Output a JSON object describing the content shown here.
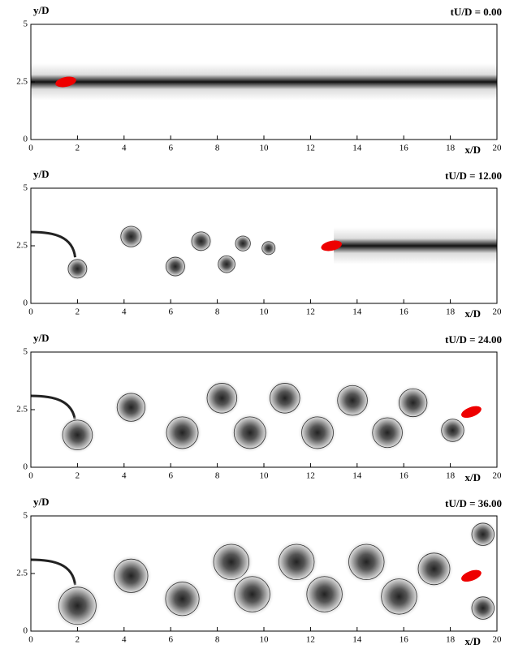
{
  "chart_data": [
    {
      "type": "field",
      "title": "tU/D = 0.00",
      "xlabel": "x/D",
      "ylabel": "y/D",
      "xlim": [
        0,
        20
      ],
      "ylim": [
        0,
        5
      ],
      "xticks": [
        0,
        2,
        4,
        6,
        8,
        10,
        12,
        14,
        16,
        18,
        20
      ],
      "yticks": [
        0,
        {
          "value": 2.5,
          "label": "2.5"
        },
        5
      ]
    },
    {
      "type": "field",
      "title": "tU/D = 12.00",
      "xlabel": "x/D",
      "ylabel": "y/D",
      "xlim": [
        0,
        20
      ],
      "ylim": [
        0,
        5
      ],
      "xticks": [
        0,
        2,
        4,
        6,
        8,
        10,
        12,
        14,
        16,
        18,
        20
      ],
      "yticks": [
        0,
        {
          "value": 2.5,
          "label": "2.5"
        },
        5
      ]
    },
    {
      "type": "field",
      "title": "tU/D = 24.00",
      "xlabel": "x/D",
      "ylabel": "y/D",
      "xlim": [
        0,
        20
      ],
      "ylim": [
        0,
        5
      ],
      "xticks": [
        0,
        2,
        4,
        6,
        8,
        10,
        12,
        14,
        16,
        18,
        20
      ],
      "yticks": [
        0,
        {
          "value": 2.5,
          "label": "2.5"
        },
        5
      ]
    },
    {
      "type": "field",
      "title": "tU/D = 36.00",
      "xlabel": "x/D",
      "ylabel": "y/D",
      "xlim": [
        0,
        20
      ],
      "ylim": [
        0,
        5
      ],
      "xticks": [
        0,
        2,
        4,
        6,
        8,
        10,
        12,
        14,
        16,
        18,
        20
      ],
      "yticks": [
        0,
        {
          "value": 2.5,
          "label": "2.5"
        },
        5
      ]
    }
  ]
}
